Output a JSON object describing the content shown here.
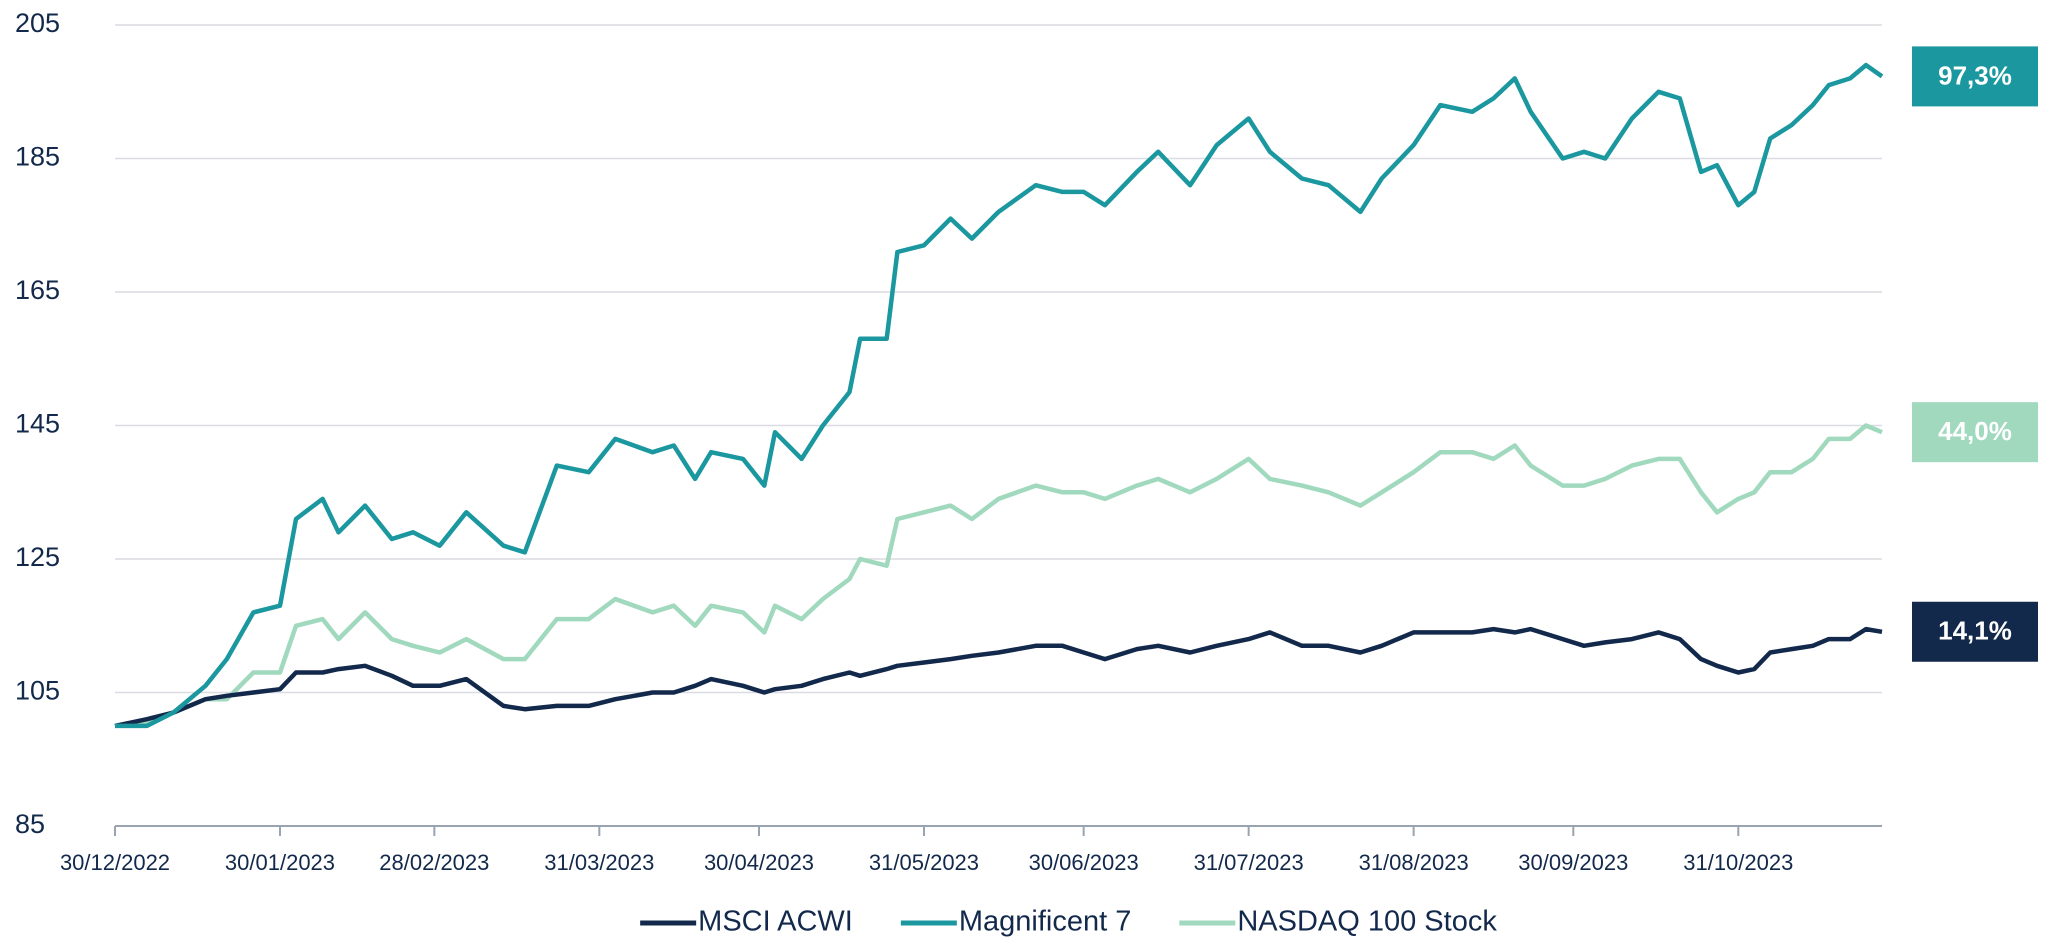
{
  "chart_data": {
    "type": "line",
    "x": [
      "30/12/2022",
      "05/01/2023",
      "10/01/2023",
      "16/01/2023",
      "20/01/2023",
      "25/01/2023",
      "30/01/2023",
      "02/02/2023",
      "07/02/2023",
      "10/02/2023",
      "15/02/2023",
      "20/02/2023",
      "24/02/2023",
      "01/03/2023",
      "06/03/2023",
      "13/03/2023",
      "17/03/2023",
      "23/03/2023",
      "29/03/2023",
      "03/04/2023",
      "10/04/2023",
      "14/04/2023",
      "18/04/2023",
      "21/04/2023",
      "27/04/2023",
      "01/05/2023",
      "03/05/2023",
      "08/05/2023",
      "12/05/2023",
      "17/05/2023",
      "19/05/2023",
      "24/05/2023",
      "26/05/2023",
      "31/05/2023",
      "05/06/2023",
      "09/06/2023",
      "14/06/2023",
      "21/06/2023",
      "26/06/2023",
      "30/06/2023",
      "04/07/2023",
      "10/07/2023",
      "14/07/2023",
      "20/07/2023",
      "25/07/2023",
      "31/07/2023",
      "04/08/2023",
      "10/08/2023",
      "15/08/2023",
      "21/08/2023",
      "25/08/2023",
      "31/08/2023",
      "05/09/2023",
      "11/09/2023",
      "15/09/2023",
      "19/09/2023",
      "22/09/2023",
      "28/09/2023",
      "02/10/2023",
      "06/10/2023",
      "11/10/2023",
      "16/10/2023",
      "20/10/2023",
      "24/10/2023",
      "27/10/2023",
      "31/10/2023",
      "03/11/2023",
      "06/11/2023",
      "10/11/2023",
      "14/11/2023",
      "17/11/2023",
      "21/11/2023",
      "24/11/2023",
      "27/11/2023"
    ],
    "series": [
      {
        "name": "MSCI ACWI",
        "color": "#13294b",
        "end_label": "14,1%",
        "values": [
          100,
          101,
          102,
          104,
          104.5,
          105,
          105.5,
          108,
          108,
          108.5,
          109,
          107.5,
          106,
          106,
          107,
          103,
          102.5,
          103,
          103,
          104,
          105,
          105,
          106,
          107,
          106,
          105,
          105.5,
          106,
          107,
          108,
          107.5,
          108.5,
          109,
          109.5,
          110,
          110.5,
          111,
          112,
          112,
          111,
          110,
          111.5,
          112,
          111,
          112,
          113,
          114,
          112,
          112,
          111,
          112,
          114,
          114,
          114,
          114.5,
          114,
          114.5,
          113,
          112,
          112.5,
          113,
          114,
          113,
          110,
          109,
          108,
          108.5,
          111,
          111.5,
          112,
          113,
          113,
          114.5,
          114.1
        ]
      },
      {
        "name": "Magnificent 7",
        "color": "#1b979f",
        "end_label": "97,3%",
        "values": [
          100,
          100,
          102,
          106,
          110,
          117,
          118,
          131,
          134,
          129,
          133,
          128,
          129,
          127,
          132,
          127,
          126,
          139,
          138,
          143,
          141,
          142,
          137,
          141,
          140,
          136,
          144,
          140,
          145,
          150,
          158,
          158,
          171,
          172,
          176,
          173,
          177,
          181,
          180,
          180,
          178,
          183,
          186,
          181,
          187,
          191,
          186,
          182,
          181,
          177,
          182,
          187,
          193,
          192,
          194,
          197,
          192,
          185,
          186,
          185,
          191,
          195,
          194,
          183,
          184,
          178,
          180,
          188,
          190,
          193,
          196,
          197,
          199,
          197.3
        ]
      },
      {
        "name": "NASDAQ 100 Stock",
        "color": "#a0d9bd",
        "end_label": "44,0%",
        "values": [
          100,
          100.5,
          102,
          104,
          104,
          108,
          108,
          115,
          116,
          113,
          117,
          113,
          112,
          111,
          113,
          110,
          110,
          116,
          116,
          119,
          117,
          118,
          115,
          118,
          117,
          114,
          118,
          116,
          119,
          122,
          125,
          124,
          131,
          132,
          133,
          131,
          134,
          136,
          135,
          135,
          134,
          136,
          137,
          135,
          137,
          140,
          137,
          136,
          135,
          133,
          135,
          138,
          141,
          141,
          140,
          142,
          139,
          136,
          136,
          137,
          139,
          140,
          140,
          135,
          132,
          134,
          135,
          138,
          138,
          140,
          143,
          143,
          145,
          144
        ]
      }
    ],
    "xlim": [
      "30/12/2022",
      "27/11/2023"
    ],
    "xticks": [
      "30/12/2022",
      "30/01/2023",
      "28/02/2023",
      "31/03/2023",
      "30/04/2023",
      "31/05/2023",
      "30/06/2023",
      "31/07/2023",
      "31/08/2023",
      "30/09/2023",
      "31/10/2023"
    ],
    "ylim": [
      85,
      205
    ],
    "yticks": [
      85,
      105,
      125,
      145,
      165,
      185,
      205
    ],
    "grid": true,
    "legend": "bottom"
  }
}
